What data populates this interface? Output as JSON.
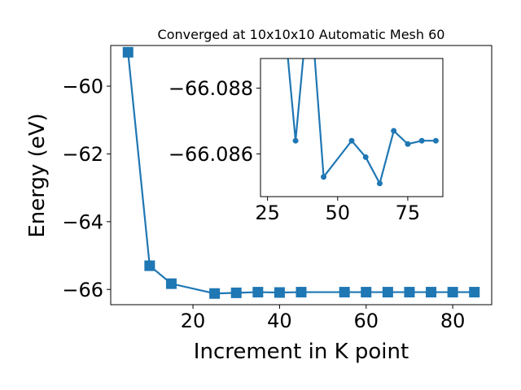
{
  "chart_data": [
    {
      "type": "line",
      "title": "Converged at 10x10x10 Automatic Mesh 60",
      "xlabel": "Increment in K point",
      "ylabel": "Energy (eV)",
      "xlim": [
        1,
        89
      ],
      "ylim": [
        -66.45,
        -58.8
      ],
      "xticks": [
        20,
        40,
        60,
        80
      ],
      "yticks": [
        -60,
        -62,
        -64,
        -66
      ],
      "ytick_labels": [
        "−60",
        "−62",
        "−64",
        "−66"
      ],
      "grid": false,
      "marker": "square",
      "color": "#1f77b4",
      "series": [
        {
          "x": [
            5,
            10,
            15,
            25,
            30,
            35,
            40,
            45,
            55,
            60,
            65,
            70,
            75,
            80,
            85
          ],
          "y": [
            -59.0,
            -65.3,
            -65.83,
            -66.12,
            -66.1,
            -66.08,
            -66.09,
            -66.08,
            -66.08,
            -66.08,
            -66.08,
            -66.08,
            -66.08,
            -66.08,
            -66.08
          ]
        }
      ]
    },
    {
      "type": "line",
      "role": "inset",
      "xlim": [
        22.5,
        87.5
      ],
      "ylim": [
        -66.0847,
        -66.0889
      ],
      "xticks": [
        25,
        50,
        75
      ],
      "yticks": [
        -66.088,
        -66.086
      ],
      "ytick_labels": [
        "−66.088",
        "−66.086"
      ],
      "grid": false,
      "marker": "circle",
      "color": "#1f77b4",
      "series": [
        {
          "x": [
            30,
            35,
            40,
            45,
            55,
            60,
            65,
            70,
            75,
            80,
            85
          ],
          "y": [
            -66.091,
            -66.0864,
            -66.091,
            -66.0853,
            -66.0864,
            -66.0859,
            -66.0851,
            -66.0867,
            -66.0863,
            -66.0864,
            -66.0864
          ]
        }
      ]
    }
  ]
}
